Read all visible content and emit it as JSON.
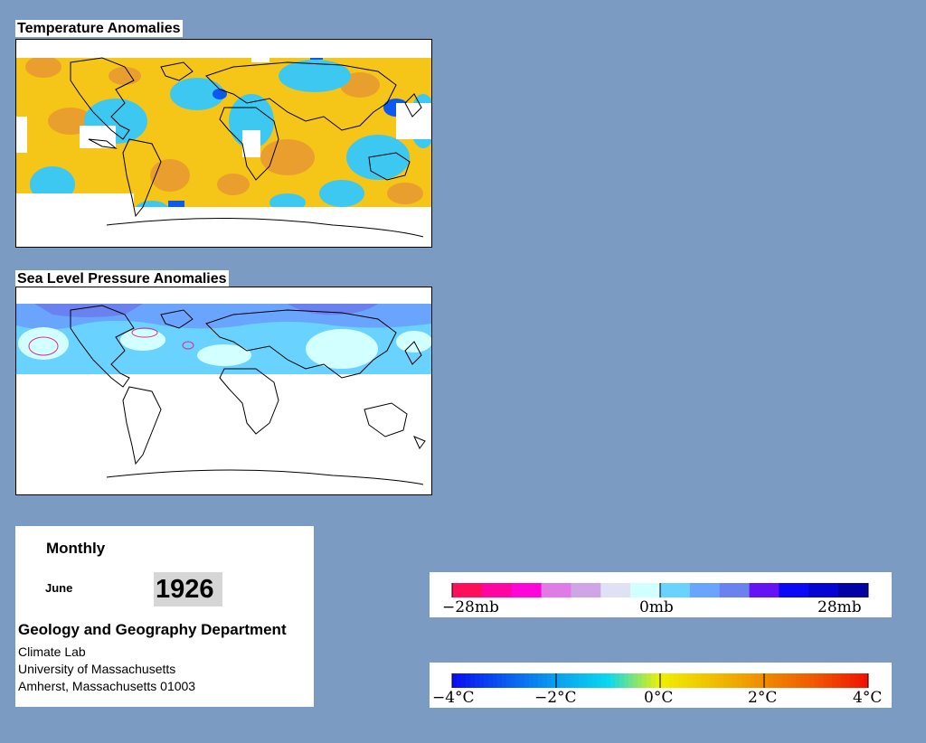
{
  "temperature_map": {
    "title": "Temperature Anomalies"
  },
  "pressure_map": {
    "title": "Sea Level Pressure Anomalies"
  },
  "info": {
    "period": "Monthly",
    "month": "June",
    "year": "1926",
    "department": "Geology and Geography Department",
    "address_lines": [
      "Climate Lab",
      "University of Massachusetts",
      "Amherst, Massachusetts 01003"
    ]
  },
  "pressure_legend": {
    "labels": [
      "−28mb",
      "0mb",
      "28mb"
    ],
    "colors": [
      "#ff0f5a",
      "#ff06a3",
      "#ff05d9",
      "#e07ae6",
      "#cfa5e6",
      "#e1e1f5",
      "#d2ffff",
      "#69d2ff",
      "#69a5ff",
      "#6982f0",
      "#6413f5",
      "#0a08f5",
      "#0505d2",
      "#0202a5"
    ]
  },
  "temperature_legend": {
    "labels": [
      "−4°C",
      "−2°C",
      "0°C",
      "2°C",
      "4°C"
    ],
    "colors": [
      "#0a10f0",
      "#0a5af0",
      "#0aa0f0",
      "#0ad8f0",
      "#f0f000",
      "#f0c000",
      "#f08c00",
      "#f05800",
      "#f01400"
    ]
  },
  "colors": {
    "background": "#7b9bc3",
    "land_outline": "#000000",
    "warm_anomaly": "#f5c518",
    "cool_anomaly": "#3cc8f0"
  }
}
